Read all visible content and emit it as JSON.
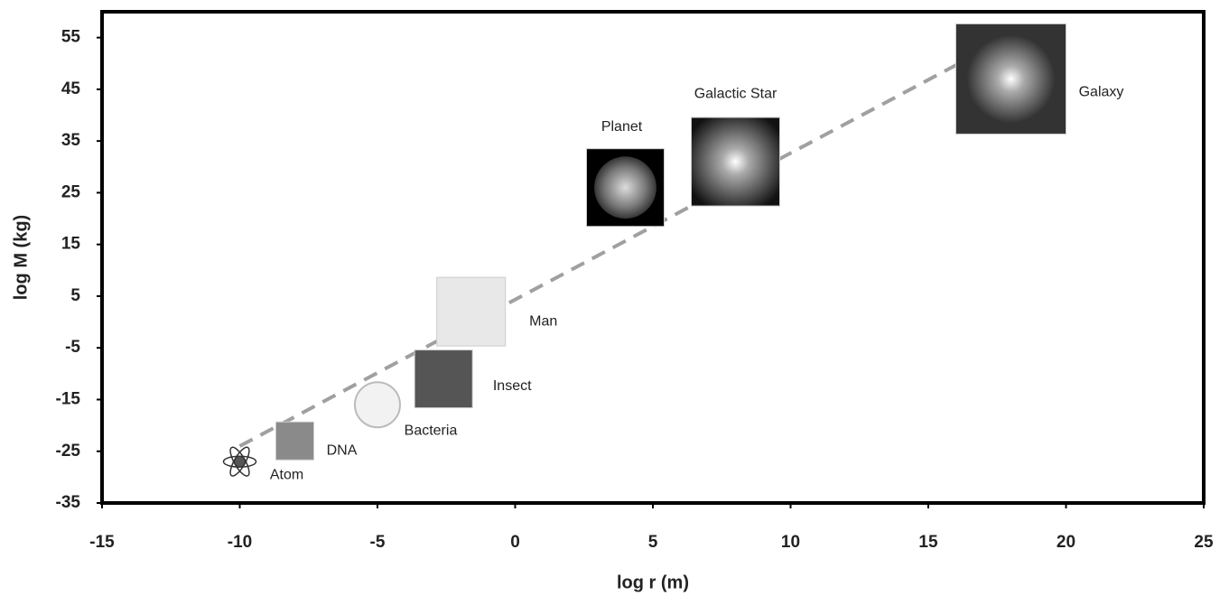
{
  "chart_data": {
    "type": "scatter",
    "x_label": "log r (m)",
    "y_label": "log M (kg)",
    "labels": [
      "Atom",
      "DNA",
      "Bacteria",
      "Insect",
      "Man",
      "Planet",
      "Galactic Star",
      "Galaxy"
    ],
    "x": [
      -10,
      -8,
      -5,
      -2.6,
      -1.6,
      4,
      8,
      18
    ],
    "y": [
      -27,
      -23,
      -16,
      -11,
      2,
      26,
      31,
      47
    ],
    "trend": {
      "x": [
        -10,
        17
      ],
      "y": [
        -24,
        52.5
      ],
      "color": "#a0a0a0"
    },
    "xlim": [
      -15,
      25
    ],
    "xticks": [
      -15,
      -10,
      -5,
      0,
      5,
      10,
      15,
      20,
      25
    ],
    "ylim": [
      -35,
      60
    ],
    "yticks": [
      55,
      45,
      35,
      25,
      15,
      5,
      -5,
      -15,
      -25,
      -35
    ],
    "grid": false
  }
}
